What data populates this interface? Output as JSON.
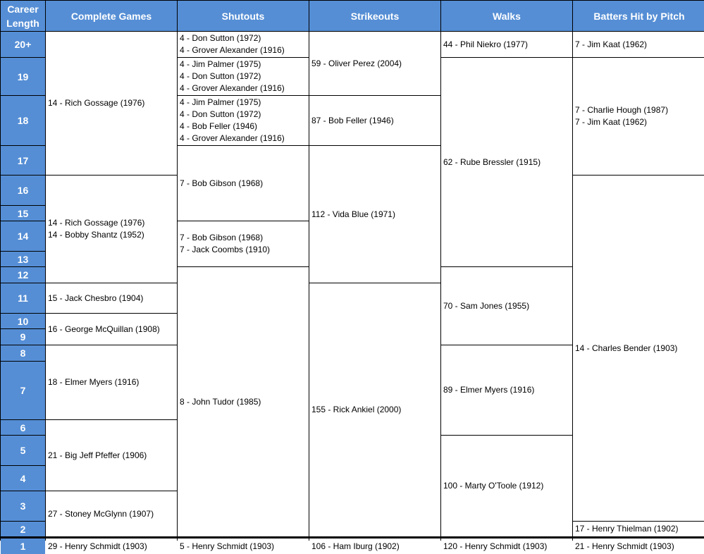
{
  "header": {
    "career_length": "Career Length",
    "columns": [
      "Complete Games",
      "Shutouts",
      "Strikeouts",
      "Walks",
      "Batters Hit by Pitch"
    ]
  },
  "rows": [
    "20+",
    "19",
    "18",
    "17",
    "16",
    "15",
    "14",
    "13",
    "12",
    "11",
    "10",
    "9",
    "8",
    "7",
    "6",
    "5",
    "4",
    "3",
    "2",
    "1"
  ],
  "colors": {
    "header_bg": "#558ED5",
    "header_text": "#FFFFFF"
  },
  "columns": [
    [
      {
        "from": "20+",
        "to": "17",
        "lines": [
          "14 - Rich Gossage (1976)"
        ]
      },
      {
        "from": "16",
        "to": "12",
        "lines": [
          "14 - Rich Gossage (1976)",
          "14 - Bobby Shantz (1952)"
        ]
      },
      {
        "from": "11",
        "to": "11",
        "lines": [
          "15 - Jack Chesbro (1904)"
        ]
      },
      {
        "from": "10",
        "to": "9",
        "lines": [
          "16 - George McQuillan (1908)"
        ]
      },
      {
        "from": "8",
        "to": "7",
        "lines": [
          "18 - Elmer Myers (1916)"
        ]
      },
      {
        "from": "6",
        "to": "4",
        "lines": [
          "21 - Big Jeff Pfeffer (1906)"
        ]
      },
      {
        "from": "3",
        "to": "2",
        "lines": [
          "27 - Stoney McGlynn (1907)"
        ]
      },
      {
        "from": "1",
        "to": "1",
        "lines": [
          "29 - Henry Schmidt (1903)"
        ]
      }
    ],
    [
      {
        "from": "20+",
        "to": "20+",
        "lines": [
          "4 - Don Sutton (1972)",
          "4 - Grover Alexander (1916)"
        ]
      },
      {
        "from": "19",
        "to": "19",
        "lines": [
          "4 - Jim Palmer (1975)",
          "4 - Don Sutton (1972)",
          "4 - Grover Alexander (1916)"
        ]
      },
      {
        "from": "18",
        "to": "18",
        "lines": [
          "4 - Jim Palmer (1975)",
          "4 - Don Sutton (1972)",
          "4 - Bob Feller (1946)",
          "4 - Grover Alexander (1916)"
        ]
      },
      {
        "from": "17",
        "to": "15",
        "lines": [
          "7 - Bob Gibson (1968)"
        ]
      },
      {
        "from": "14",
        "to": "13",
        "lines": [
          "7 - Bob Gibson (1968)",
          "7 - Jack Coombs (1910)"
        ]
      },
      {
        "from": "12",
        "to": "2",
        "lines": [
          "8 - John Tudor (1985)"
        ]
      },
      {
        "from": "1",
        "to": "1",
        "lines": [
          "5 - Henry Schmidt (1903)"
        ]
      }
    ],
    [
      {
        "from": "20+",
        "to": "19",
        "lines": [
          "59 - Oliver Perez (2004)"
        ]
      },
      {
        "from": "18",
        "to": "18",
        "lines": [
          "87 - Bob Feller (1946)"
        ]
      },
      {
        "from": "17",
        "to": "12",
        "lines": [
          "112 - Vida Blue (1971)"
        ]
      },
      {
        "from": "11",
        "to": "2",
        "lines": [
          "155 - Rick Ankiel (2000)"
        ]
      },
      {
        "from": "1",
        "to": "1",
        "lines": [
          "106 - Ham Iburg (1902)"
        ]
      }
    ],
    [
      {
        "from": "20+",
        "to": "20+",
        "lines": [
          "44 - Phil Niekro (1977)"
        ]
      },
      {
        "from": "19",
        "to": "13",
        "lines": [
          "62 - Rube Bressler (1915)"
        ]
      },
      {
        "from": "12",
        "to": "9",
        "lines": [
          "70 - Sam Jones (1955)"
        ]
      },
      {
        "from": "8",
        "to": "6",
        "lines": [
          "89 - Elmer Myers (1916)"
        ]
      },
      {
        "from": "5",
        "to": "2",
        "lines": [
          "100 - Marty O'Toole (1912)"
        ]
      },
      {
        "from": "1",
        "to": "1",
        "lines": [
          "120 - Henry Schmidt (1903)"
        ]
      }
    ],
    [
      {
        "from": "20+",
        "to": "20+",
        "lines": [
          "7 - Jim Kaat (1962)"
        ]
      },
      {
        "from": "19",
        "to": "17",
        "lines": [
          "7 - Charlie Hough (1987)",
          "7 - Jim Kaat (1962)"
        ]
      },
      {
        "from": "16",
        "to": "3",
        "lines": [
          "14 - Charles Bender (1903)"
        ]
      },
      {
        "from": "2",
        "to": "2",
        "lines": [
          "17 - Henry Thielman (1902)"
        ]
      },
      {
        "from": "1",
        "to": "1",
        "lines": [
          "21 - Henry Schmidt (1903)"
        ]
      }
    ]
  ]
}
